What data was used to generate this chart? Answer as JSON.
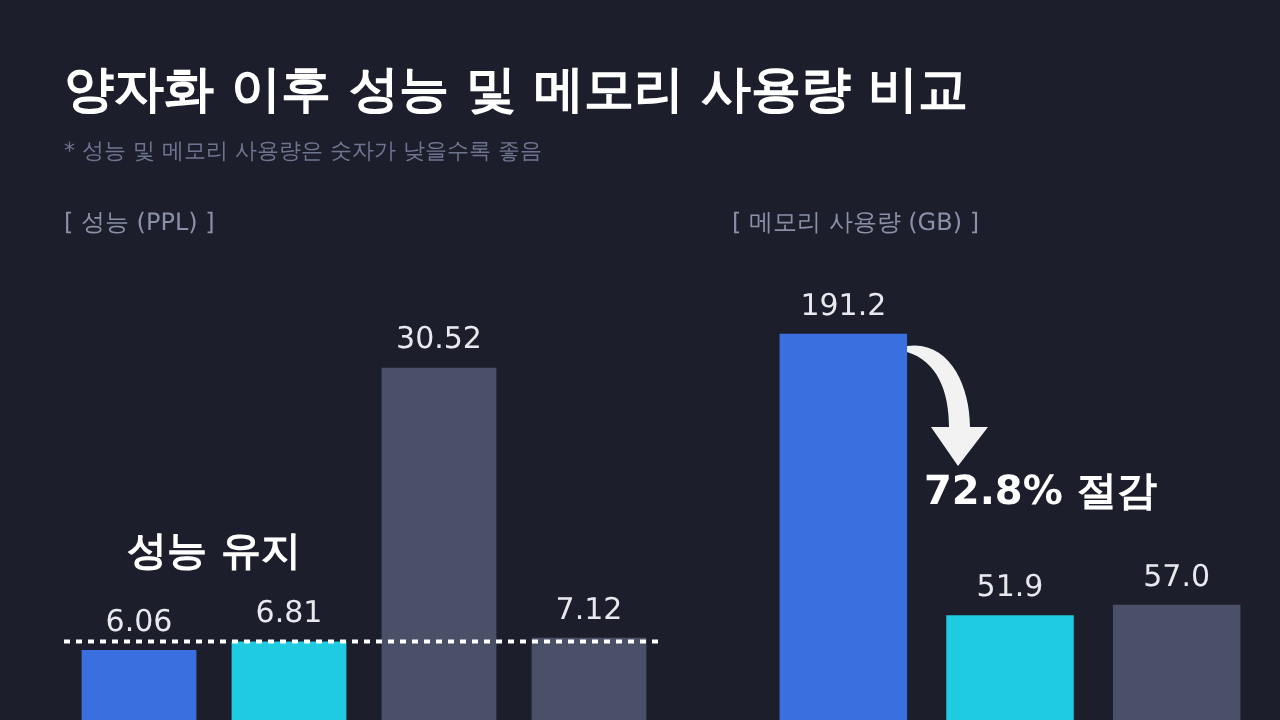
{
  "chart_data": [
    {
      "type": "bar",
      "title": "양자화 이후 성능 및 메모리 사용량 비교",
      "subtitle": "* 성능 및 메모리 사용량은 숫자가 낮을수록 좋음",
      "ylabel": "[ 성능 (PPL) ]",
      "categories": [
        null,
        null,
        null,
        null
      ],
      "values": [
        6.06,
        6.81,
        30.52,
        7.12
      ],
      "colors": [
        "#3a6fe0",
        "#1ecbe1",
        "#4a5068",
        "#4a5068"
      ],
      "data_labels": true,
      "tick_labels": false,
      "ref_lines": [
        {
          "axis": "y",
          "value": 6.81,
          "label": "성능 유지",
          "color": "#ffffff",
          "line_style": "dotted"
        }
      ]
    },
    {
      "type": "bar",
      "ylabel": "[ 메모리 사용량 (GB) ]",
      "categories": [
        null,
        null,
        null
      ],
      "values": [
        191.2,
        51.9,
        57.0
      ],
      "value_labels": [
        "191.2",
        "51.9",
        "57.0"
      ],
      "colors": [
        "#3a6fe0",
        "#1ecbe1",
        "#4a5068"
      ],
      "tick_labels": false,
      "annotations": [
        "72.8% 절감"
      ]
    }
  ]
}
